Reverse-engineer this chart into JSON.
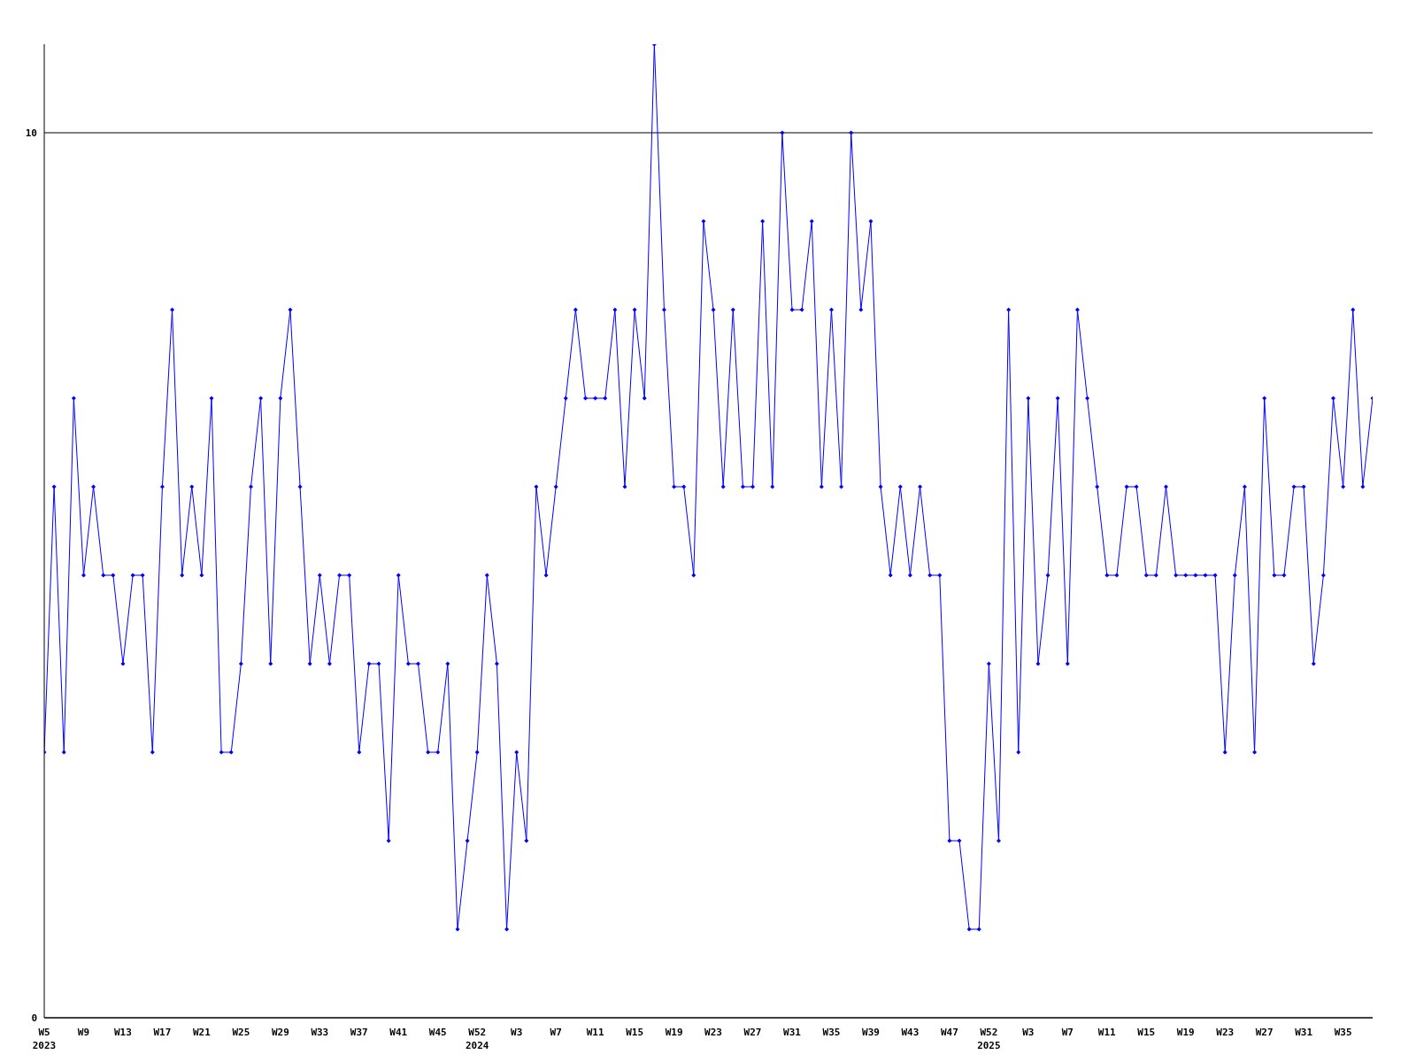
{
  "chart_data": {
    "type": "line",
    "categories": [
      "W5\n2023",
      null,
      null,
      null,
      "W9",
      null,
      null,
      null,
      "W13",
      null,
      null,
      null,
      "W17",
      null,
      null,
      null,
      "W21",
      null,
      null,
      null,
      "W25",
      null,
      null,
      null,
      "W29",
      null,
      null,
      null,
      "W33",
      null,
      null,
      null,
      "W37",
      null,
      null,
      null,
      "W41",
      null,
      null,
      null,
      "W45",
      null,
      null,
      null,
      "W52\n2024",
      null,
      null,
      null,
      "W3",
      null,
      null,
      null,
      "W7",
      null,
      null,
      null,
      "W11",
      null,
      null,
      null,
      "W15",
      null,
      null,
      null,
      "W19",
      null,
      null,
      null,
      "W23",
      null,
      null,
      null,
      "W27",
      null,
      null,
      null,
      "W31",
      null,
      null,
      null,
      "W35",
      null,
      null,
      null,
      "W39",
      null,
      null,
      null,
      "W43",
      null,
      null,
      null,
      "W47",
      null,
      null,
      null,
      "W52\n2025",
      null,
      null,
      null,
      "W3",
      null,
      null,
      null,
      "W7",
      null,
      null,
      null,
      "W11",
      null,
      null,
      null,
      "W15",
      null,
      null,
      null,
      "W19",
      null,
      null,
      null,
      "W23",
      null,
      null,
      null,
      "W27",
      null,
      null,
      null,
      "W31",
      null,
      null,
      null,
      "W35",
      null,
      null,
      null
    ],
    "series": [
      {
        "color": "#0000ff",
        "values": [
          3,
          6,
          3,
          7,
          5,
          6,
          5,
          5,
          4,
          5,
          5,
          3,
          6,
          8,
          5,
          6,
          5,
          7,
          3,
          3,
          4,
          6,
          7,
          4,
          7,
          8,
          6,
          4,
          5,
          4,
          5,
          5,
          3,
          4,
          4,
          2,
          5,
          4,
          4,
          3,
          3,
          4,
          1,
          2,
          3,
          5,
          4,
          1,
          3,
          2,
          6,
          5,
          6,
          7,
          8,
          7,
          7,
          7,
          8,
          6,
          8,
          7,
          11,
          8,
          6,
          6,
          5,
          9,
          8,
          6,
          8,
          6,
          6,
          9,
          6,
          10,
          8,
          8,
          9,
          6,
          8,
          6,
          10,
          8,
          9,
          6,
          5,
          6,
          5,
          6,
          5,
          5,
          2,
          2,
          1,
          1,
          4,
          2,
          8,
          3,
          7,
          4,
          5,
          7,
          4,
          8,
          7,
          6,
          5,
          5,
          6,
          6,
          5,
          5,
          6,
          5,
          5,
          5,
          5,
          5,
          3,
          5,
          6,
          3,
          7,
          5,
          5,
          6,
          6,
          4,
          5,
          7,
          6,
          8,
          6,
          7
        ]
      }
    ],
    "ylim": [
      0,
      11
    ],
    "yticks": [
      0,
      10
    ],
    "grid": "y",
    "marker": "diamond",
    "line_style": "solid"
  }
}
